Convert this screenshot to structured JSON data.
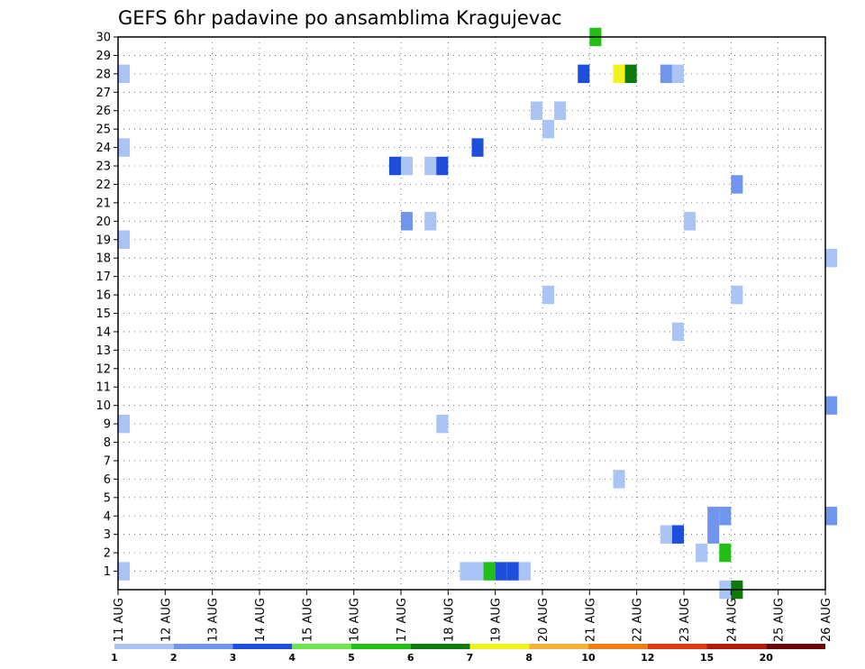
{
  "chart_data": {
    "type": "heatmap",
    "title": "GEFS 6hr padavine po ansamblima Kragujevac",
    "xlabel": "",
    "ylabel": "",
    "x_ticks": [
      "11 AUG",
      "12 AUG",
      "13 AUG",
      "14 AUG",
      "15 AUG",
      "16 AUG",
      "17 AUG",
      "18 AUG",
      "19 AUG",
      "20 AUG",
      "21 AUG",
      "22 AUG",
      "23 AUG",
      "24 AUG",
      "25 AUG",
      "26 AUG"
    ],
    "y_ticks": [
      "1",
      "2",
      "3",
      "4",
      "5",
      "6",
      "7",
      "8",
      "9",
      "10",
      "11",
      "12",
      "13",
      "14",
      "15",
      "16",
      "17",
      "18",
      "19",
      "20",
      "21",
      "22",
      "23",
      "24",
      "25",
      "26",
      "27",
      "28",
      "29",
      "30"
    ],
    "grid": true,
    "x_unit": "6-hour step from 11 AUG 00z",
    "y_unit": "ensemble member",
    "legend_levels": [
      "1",
      "2",
      "3",
      "4",
      "5",
      "6",
      "7",
      "8",
      "10",
      "12",
      "15",
      "20"
    ],
    "legend_colors": [
      "#a9c4f5",
      "#6f95ee",
      "#1e4fdc",
      "#6ee44e",
      "#22c017",
      "#0f7a0a",
      "#f2f21c",
      "#f5b23a",
      "#f07d14",
      "#dc3a12",
      "#b41a0a",
      "#6a0606"
    ],
    "cells": [
      {
        "step": 0,
        "member": 28,
        "cat": 1
      },
      {
        "step": 0,
        "member": 24,
        "cat": 1
      },
      {
        "step": 0,
        "member": 19,
        "cat": 1
      },
      {
        "step": 0,
        "member": 9,
        "cat": 1
      },
      {
        "step": 0,
        "member": 1,
        "cat": 1
      },
      {
        "step": 23,
        "member": 23,
        "cat": 3
      },
      {
        "step": 24,
        "member": 23,
        "cat": 1
      },
      {
        "step": 26,
        "member": 23,
        "cat": 1
      },
      {
        "step": 27,
        "member": 23,
        "cat": 3
      },
      {
        "step": 24,
        "member": 20,
        "cat": 2
      },
      {
        "step": 26,
        "member": 20,
        "cat": 1
      },
      {
        "step": 27,
        "member": 9,
        "cat": 1
      },
      {
        "step": 30,
        "member": 24,
        "cat": 3
      },
      {
        "step": 29,
        "member": 1,
        "cat": 1
      },
      {
        "step": 30,
        "member": 1,
        "cat": 1
      },
      {
        "step": 31,
        "member": 1,
        "cat": 5
      },
      {
        "step": 32,
        "member": 1,
        "cat": 3
      },
      {
        "step": 33,
        "member": 1,
        "cat": 3
      },
      {
        "step": 34,
        "member": 1,
        "cat": 1
      },
      {
        "step": 35,
        "member": 26,
        "cat": 1
      },
      {
        "step": 37,
        "member": 26,
        "cat": 1
      },
      {
        "step": 36,
        "member": 25,
        "cat": 1
      },
      {
        "step": 36,
        "member": 16,
        "cat": 1
      },
      {
        "step": 40,
        "member": 30,
        "cat": 5
      },
      {
        "step": 39,
        "member": 28,
        "cat": 3
      },
      {
        "step": 42,
        "member": 28,
        "cat": 7
      },
      {
        "step": 43,
        "member": 28,
        "cat": 6
      },
      {
        "step": 46,
        "member": 28,
        "cat": 2
      },
      {
        "step": 47,
        "member": 28,
        "cat": 1
      },
      {
        "step": 42,
        "member": 6,
        "cat": 1
      },
      {
        "step": 48,
        "member": 20,
        "cat": 1
      },
      {
        "step": 47,
        "member": 14,
        "cat": 1
      },
      {
        "step": 46,
        "member": 3,
        "cat": 1
      },
      {
        "step": 47,
        "member": 3,
        "cat": 3
      },
      {
        "step": 50,
        "member": 4,
        "cat": 2
      },
      {
        "step": 51,
        "member": 4,
        "cat": 2
      },
      {
        "step": 50,
        "member": 3,
        "cat": 2
      },
      {
        "step": 49,
        "member": 2,
        "cat": 1
      },
      {
        "step": 51,
        "member": 2,
        "cat": 5
      },
      {
        "step": 51,
        "member": 0,
        "cat": 1
      },
      {
        "step": 52,
        "member": 0,
        "cat": 6
      },
      {
        "step": 52,
        "member": 22,
        "cat": 2
      },
      {
        "step": 52,
        "member": 16,
        "cat": 1
      },
      {
        "step": 60,
        "member": 18,
        "cat": 1
      },
      {
        "step": 60,
        "member": 10,
        "cat": 2
      },
      {
        "step": 60,
        "member": 4,
        "cat": 2
      }
    ]
  }
}
